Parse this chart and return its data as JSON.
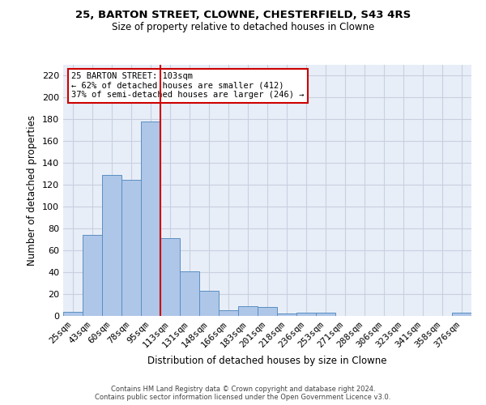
{
  "title1": "25, BARTON STREET, CLOWNE, CHESTERFIELD, S43 4RS",
  "title2": "Size of property relative to detached houses in Clowne",
  "xlabel": "Distribution of detached houses by size in Clowne",
  "ylabel": "Number of detached properties",
  "categories": [
    "25sqm",
    "43sqm",
    "60sqm",
    "78sqm",
    "95sqm",
    "113sqm",
    "131sqm",
    "148sqm",
    "166sqm",
    "183sqm",
    "201sqm",
    "218sqm",
    "236sqm",
    "253sqm",
    "271sqm",
    "288sqm",
    "306sqm",
    "323sqm",
    "341sqm",
    "358sqm",
    "376sqm"
  ],
  "values": [
    4,
    74,
    129,
    125,
    178,
    71,
    41,
    23,
    5,
    9,
    8,
    2,
    3,
    3,
    0,
    0,
    0,
    0,
    0,
    0,
    3
  ],
  "bar_color": "#aec6e8",
  "bar_edgecolor": "#5a8fc2",
  "vline_color": "#cc0000",
  "annotation_text": "25 BARTON STREET: 103sqm\n← 62% of detached houses are smaller (412)\n37% of semi-detached houses are larger (246) →",
  "annotation_box_edgecolor": "#cc0000",
  "footer": "Contains HM Land Registry data © Crown copyright and database right 2024.\nContains public sector information licensed under the Open Government Licence v3.0.",
  "ylim": [
    0,
    230
  ],
  "yticks": [
    0,
    20,
    40,
    60,
    80,
    100,
    120,
    140,
    160,
    180,
    200,
    220
  ],
  "bg_color": "#e8eef8",
  "grid_color": "#c8d0e0"
}
